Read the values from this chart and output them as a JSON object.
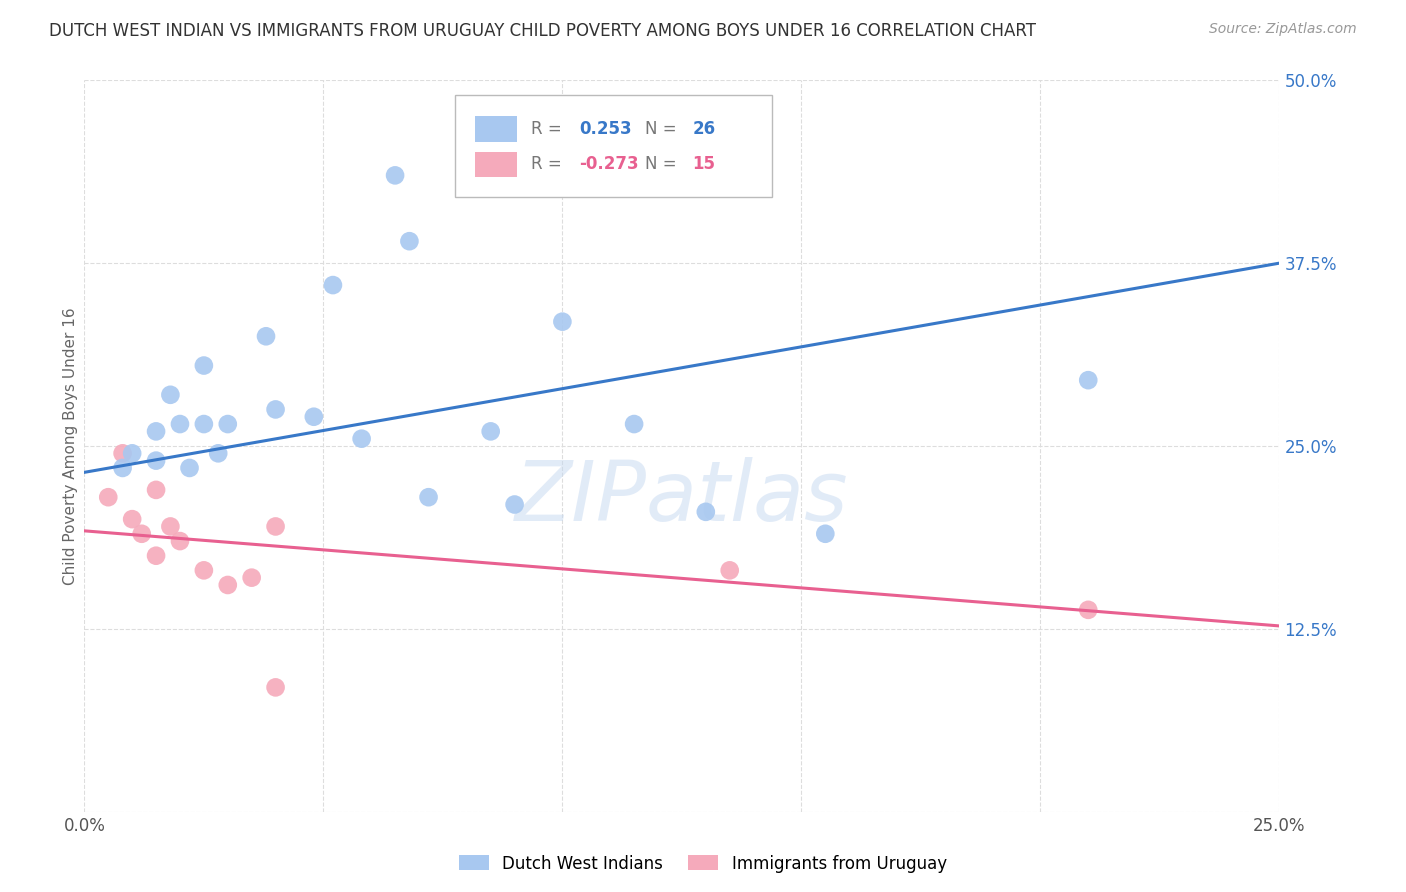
{
  "title": "DUTCH WEST INDIAN VS IMMIGRANTS FROM URUGUAY CHILD POVERTY AMONG BOYS UNDER 16 CORRELATION CHART",
  "source": "Source: ZipAtlas.com",
  "ylabel": "Child Poverty Among Boys Under 16",
  "xlim": [
    0,
    0.25
  ],
  "ylim": [
    0,
    0.5
  ],
  "xticks": [
    0.0,
    0.05,
    0.1,
    0.15,
    0.2,
    0.25
  ],
  "yticks": [
    0.0,
    0.125,
    0.25,
    0.375,
    0.5
  ],
  "xticklabels": [
    "0.0%",
    "",
    "",
    "",
    "",
    "25.0%"
  ],
  "yticklabels": [
    "",
    "12.5%",
    "25.0%",
    "37.5%",
    "50.0%"
  ],
  "blue_R": 0.253,
  "blue_N": 26,
  "pink_R": -0.273,
  "pink_N": 15,
  "blue_color": "#A8C8F0",
  "pink_color": "#F5AABB",
  "blue_line_color": "#3878C8",
  "pink_line_color": "#E86090",
  "blue_line_x0": 0.0,
  "blue_line_y0": 0.232,
  "blue_line_x1": 0.25,
  "blue_line_y1": 0.375,
  "pink_line_x0": 0.0,
  "pink_line_y0": 0.192,
  "pink_line_x1": 0.25,
  "pink_line_y1": 0.127,
  "blue_scatter_x": [
    0.008,
    0.01,
    0.015,
    0.015,
    0.018,
    0.02,
    0.022,
    0.025,
    0.025,
    0.028,
    0.03,
    0.038,
    0.04,
    0.048,
    0.052,
    0.058,
    0.065,
    0.068,
    0.072,
    0.085,
    0.09,
    0.1,
    0.115,
    0.13,
    0.155,
    0.21
  ],
  "blue_scatter_y": [
    0.235,
    0.245,
    0.26,
    0.24,
    0.285,
    0.265,
    0.235,
    0.265,
    0.305,
    0.245,
    0.265,
    0.325,
    0.275,
    0.27,
    0.36,
    0.255,
    0.435,
    0.39,
    0.215,
    0.26,
    0.21,
    0.335,
    0.265,
    0.205,
    0.19,
    0.295
  ],
  "pink_scatter_x": [
    0.005,
    0.008,
    0.01,
    0.012,
    0.015,
    0.015,
    0.018,
    0.02,
    0.025,
    0.03,
    0.035,
    0.04,
    0.04,
    0.135,
    0.21
  ],
  "pink_scatter_y": [
    0.215,
    0.245,
    0.2,
    0.19,
    0.22,
    0.175,
    0.195,
    0.185,
    0.165,
    0.155,
    0.16,
    0.195,
    0.085,
    0.165,
    0.138
  ],
  "watermark": "ZIPatlas",
  "legend_blue_label": "Dutch West Indians",
  "legend_pink_label": "Immigrants from Uruguay",
  "background_color": "#ffffff",
  "grid_color": "#dddddd",
  "ytick_color": "#3878C8",
  "xtick_color": "#555555"
}
